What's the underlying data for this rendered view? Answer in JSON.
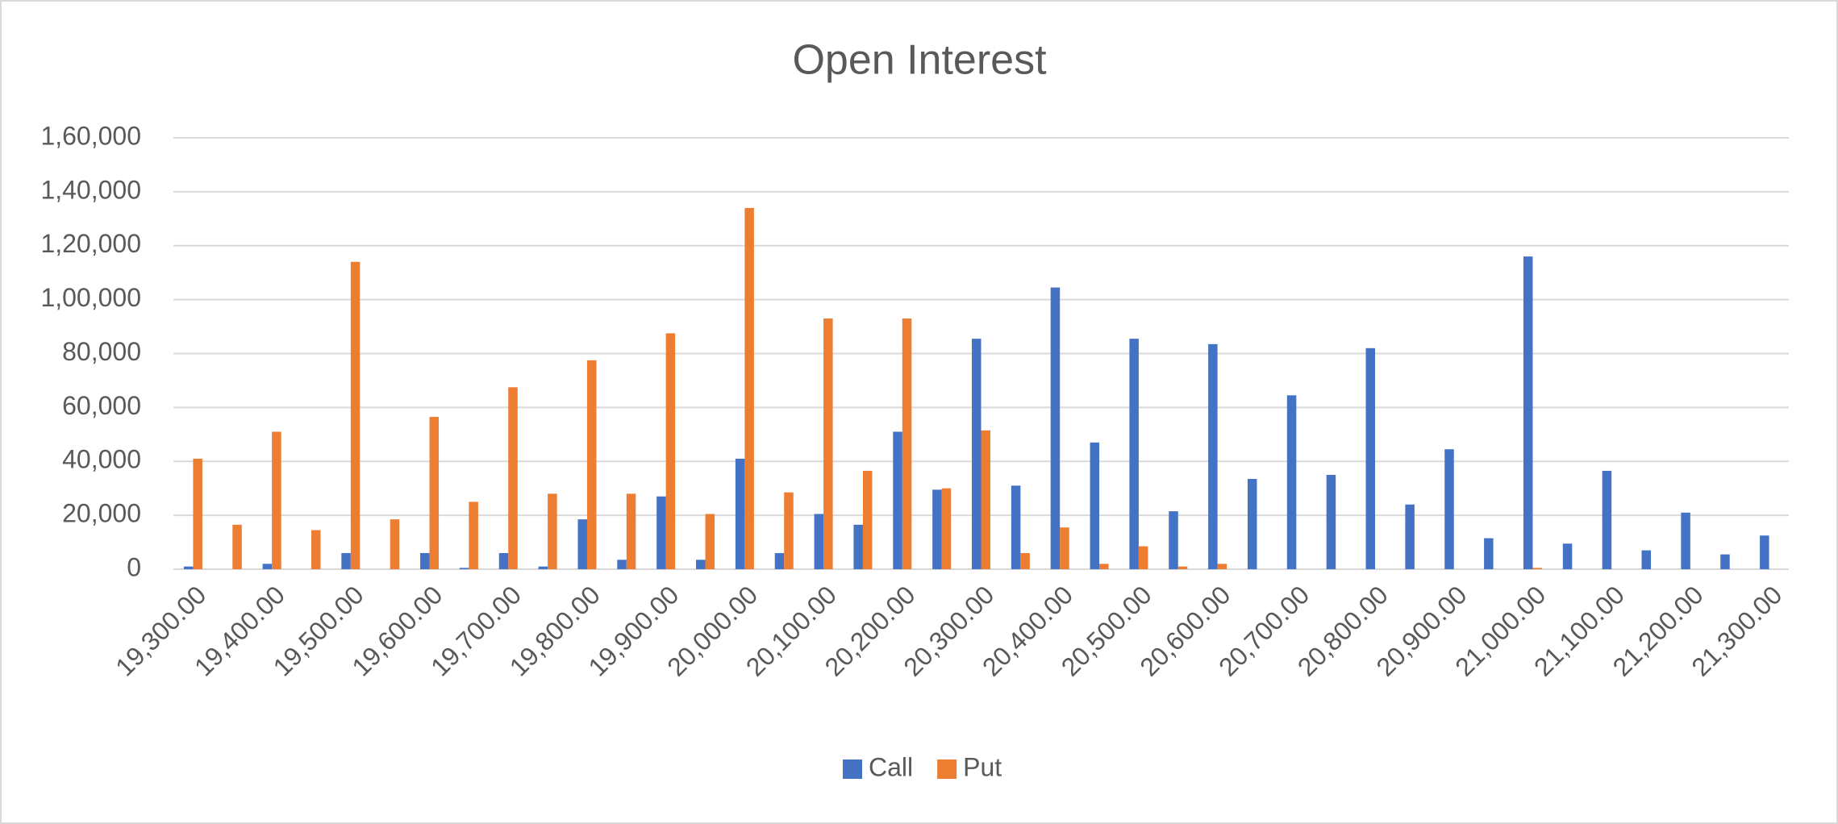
{
  "chart_data": {
    "type": "bar",
    "title": "Open Interest",
    "categories": [
      "19,300.00",
      null,
      "19,400.00",
      null,
      "19,500.00",
      null,
      "19,600.00",
      null,
      "19,700.00",
      null,
      "19,800.00",
      null,
      "19,900.00",
      null,
      "20,000.00",
      null,
      "20,100.00",
      null,
      "20,200.00",
      null,
      "20,300.00",
      null,
      "20,400.00",
      null,
      "20,500.00",
      null,
      "20,600.00",
      null,
      "20,700.00",
      null,
      "20,800.00",
      null,
      "20,900.00",
      null,
      "21,000.00",
      null,
      "21,100.00",
      null,
      "21,200.00",
      null,
      "21,300.00"
    ],
    "series": [
      {
        "name": "Call",
        "color": "#4472c4",
        "values": [
          1000,
          0,
          2000,
          0,
          6000,
          0,
          6000,
          500,
          6000,
          1000,
          18500,
          3500,
          27000,
          3500,
          41000,
          6000,
          20500,
          16500,
          51000,
          29500,
          85500,
          31000,
          104500,
          47000,
          85500,
          21500,
          83500,
          33500,
          64500,
          35000,
          82000,
          24000,
          44500,
          11500,
          116000,
          9500,
          36500,
          7000,
          21000,
          5500,
          12500
        ]
      },
      {
        "name": "Put",
        "color": "#ed7d31",
        "values": [
          41000,
          16500,
          51000,
          14500,
          114000,
          18500,
          56500,
          25000,
          67500,
          28000,
          77500,
          28000,
          87500,
          20500,
          134000,
          28500,
          93000,
          36500,
          93000,
          30000,
          51500,
          6000,
          15500,
          2000,
          8500,
          1000,
          2000,
          0,
          0,
          0,
          0,
          0,
          0,
          0,
          500,
          0,
          0,
          0,
          0,
          0,
          0
        ]
      }
    ],
    "ylim": [
      0,
      160000
    ],
    "yticks": [
      0,
      {
        "value": 20000,
        "label": "20,000"
      },
      {
        "value": 40000,
        "label": "40,000"
      },
      {
        "value": 60000,
        "label": "60,000"
      },
      {
        "value": 80000,
        "label": "80,000"
      },
      {
        "value": 100000,
        "label": "1,00,000"
      },
      {
        "value": 120000,
        "label": "1,20,000"
      },
      {
        "value": 140000,
        "label": "1,40,000"
      },
      {
        "value": 160000,
        "label": "1,60,000"
      }
    ],
    "grid": true,
    "legend": "bottom"
  }
}
